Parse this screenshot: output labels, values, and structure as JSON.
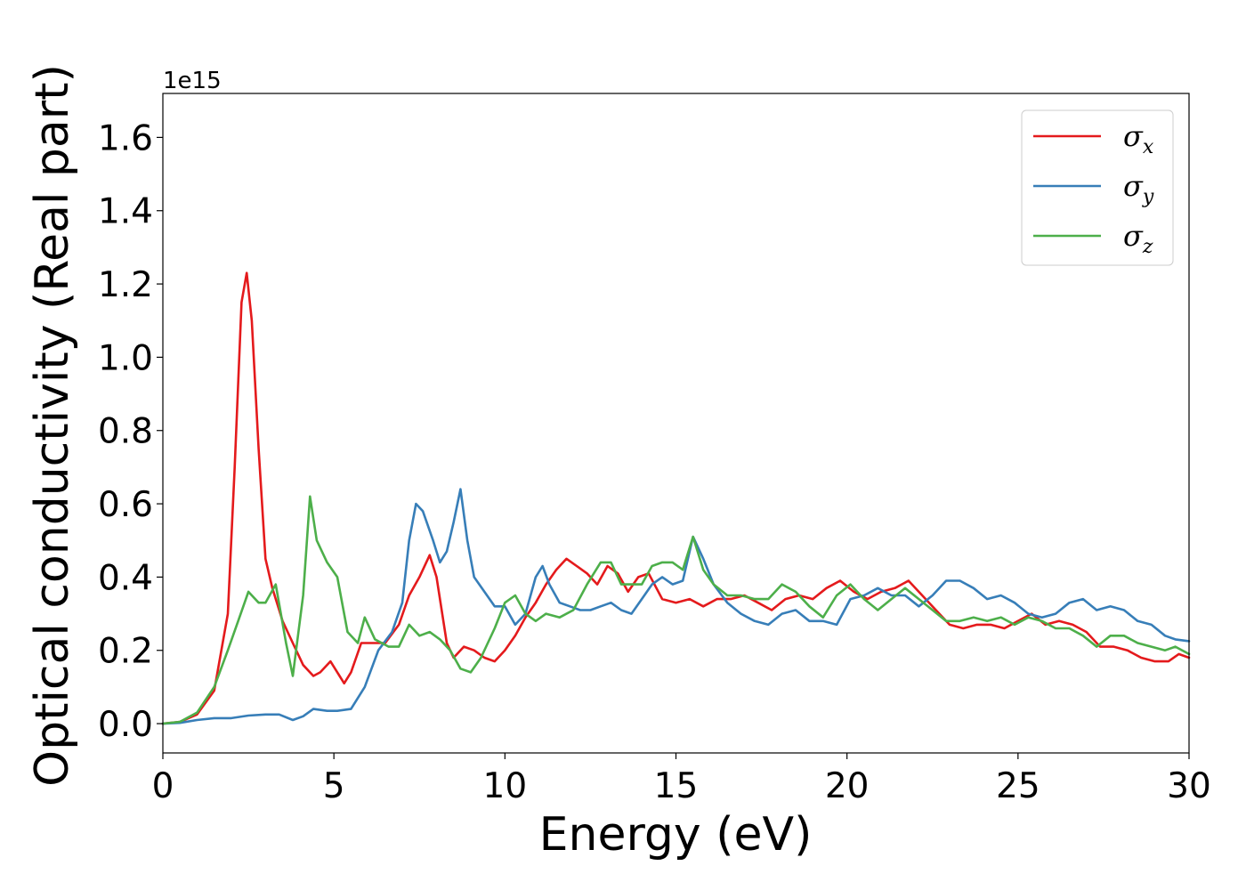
{
  "chart_data": {
    "type": "line",
    "xlabel": "Energy (eV)",
    "ylabel": "Optical conductivity (Real part)",
    "y_offset_label": "1e15",
    "xlim": [
      0,
      30
    ],
    "ylim": [
      -0.08,
      1.72
    ],
    "xticks": [
      0,
      5,
      10,
      15,
      20,
      25,
      30
    ],
    "yticks": [
      0.0,
      0.2,
      0.4,
      0.6,
      0.8,
      1.0,
      1.2,
      1.4,
      1.6
    ],
    "grid": false,
    "legend_placement": "top-right",
    "series": [
      {
        "name": "σx",
        "symbol": "σ",
        "subscript": "x",
        "color": "#e41a1c",
        "x": [
          0,
          0.5,
          1,
          1.5,
          1.9,
          2.1,
          2.3,
          2.45,
          2.6,
          2.8,
          3,
          3.2,
          3.5,
          3.8,
          4.1,
          4.4,
          4.6,
          4.9,
          5.1,
          5.3,
          5.5,
          5.8,
          6.1,
          6.5,
          6.9,
          7.2,
          7.5,
          7.8,
          8,
          8.3,
          8.5,
          8.8,
          9.1,
          9.4,
          9.7,
          10,
          10.3,
          10.6,
          10.9,
          11.2,
          11.5,
          11.8,
          12.1,
          12.4,
          12.7,
          13,
          13.3,
          13.6,
          13.9,
          14.2,
          14.6,
          15,
          15.4,
          15.8,
          16.2,
          16.6,
          17,
          17.4,
          17.8,
          18.2,
          18.6,
          19,
          19.4,
          19.8,
          20.2,
          20.6,
          21,
          21.4,
          21.8,
          22.2,
          22.6,
          23,
          23.4,
          23.8,
          24.2,
          24.6,
          25,
          25.4,
          25.8,
          26.2,
          26.6,
          27,
          27.4,
          27.8,
          28.2,
          28.6,
          29,
          29.4,
          29.7,
          30
        ],
        "values": [
          0,
          0.005,
          0.025,
          0.09,
          0.3,
          0.7,
          1.15,
          1.23,
          1.1,
          0.75,
          0.45,
          0.37,
          0.28,
          0.22,
          0.16,
          0.13,
          0.14,
          0.17,
          0.14,
          0.11,
          0.14,
          0.22,
          0.22,
          0.22,
          0.27,
          0.35,
          0.4,
          0.46,
          0.4,
          0.22,
          0.18,
          0.21,
          0.2,
          0.18,
          0.17,
          0.2,
          0.24,
          0.29,
          0.33,
          0.38,
          0.42,
          0.45,
          0.43,
          0.41,
          0.38,
          0.43,
          0.41,
          0.36,
          0.4,
          0.41,
          0.34,
          0.33,
          0.34,
          0.32,
          0.34,
          0.34,
          0.35,
          0.33,
          0.31,
          0.34,
          0.35,
          0.34,
          0.37,
          0.39,
          0.36,
          0.34,
          0.36,
          0.37,
          0.39,
          0.35,
          0.31,
          0.27,
          0.26,
          0.27,
          0.27,
          0.26,
          0.28,
          0.3,
          0.27,
          0.28,
          0.27,
          0.25,
          0.21,
          0.21,
          0.2,
          0.18,
          0.17,
          0.17,
          0.19,
          0.18
        ]
      },
      {
        "name": "σy",
        "symbol": "σ",
        "subscript": "y",
        "color": "#377eb8",
        "x": [
          0,
          0.5,
          1,
          1.5,
          2,
          2.5,
          3,
          3.4,
          3.8,
          4.1,
          4.4,
          4.8,
          5.1,
          5.5,
          5.9,
          6.3,
          6.7,
          7,
          7.2,
          7.4,
          7.6,
          7.9,
          8.1,
          8.3,
          8.5,
          8.7,
          8.9,
          9.1,
          9.4,
          9.7,
          10,
          10.3,
          10.6,
          10.9,
          11.1,
          11.3,
          11.6,
          11.9,
          12.2,
          12.5,
          12.8,
          13.1,
          13.4,
          13.7,
          14,
          14.3,
          14.6,
          14.9,
          15.2,
          15.5,
          15.8,
          16.1,
          16.5,
          16.9,
          17.3,
          17.7,
          18.1,
          18.5,
          18.9,
          19.3,
          19.7,
          20.1,
          20.5,
          20.9,
          21.3,
          21.7,
          22.1,
          22.5,
          22.9,
          23.3,
          23.7,
          24.1,
          24.5,
          24.9,
          25.3,
          25.7,
          26.1,
          26.5,
          26.9,
          27.3,
          27.7,
          28.1,
          28.5,
          28.9,
          29.3,
          29.6,
          30
        ],
        "values": [
          0,
          0.002,
          0.01,
          0.015,
          0.015,
          0.022,
          0.025,
          0.025,
          0.01,
          0.02,
          0.04,
          0.035,
          0.035,
          0.04,
          0.1,
          0.2,
          0.25,
          0.33,
          0.5,
          0.6,
          0.58,
          0.5,
          0.44,
          0.47,
          0.55,
          0.64,
          0.5,
          0.4,
          0.36,
          0.32,
          0.32,
          0.27,
          0.3,
          0.4,
          0.43,
          0.38,
          0.33,
          0.32,
          0.31,
          0.31,
          0.32,
          0.33,
          0.31,
          0.3,
          0.34,
          0.38,
          0.4,
          0.38,
          0.39,
          0.51,
          0.45,
          0.38,
          0.33,
          0.3,
          0.28,
          0.27,
          0.3,
          0.31,
          0.28,
          0.28,
          0.27,
          0.34,
          0.35,
          0.37,
          0.35,
          0.35,
          0.32,
          0.35,
          0.39,
          0.39,
          0.37,
          0.34,
          0.35,
          0.33,
          0.3,
          0.29,
          0.3,
          0.33,
          0.34,
          0.31,
          0.32,
          0.31,
          0.28,
          0.27,
          0.24,
          0.23,
          0.225
        ]
      },
      {
        "name": "σz",
        "symbol": "σ",
        "subscript": "z",
        "color": "#4daf4a",
        "x": [
          0,
          0.5,
          1,
          1.5,
          1.9,
          2.2,
          2.5,
          2.8,
          3,
          3.3,
          3.6,
          3.8,
          4.1,
          4.3,
          4.5,
          4.8,
          5.1,
          5.4,
          5.7,
          5.9,
          6.2,
          6.6,
          6.9,
          7.2,
          7.5,
          7.8,
          8.1,
          8.4,
          8.7,
          9,
          9.3,
          9.7,
          10,
          10.3,
          10.6,
          10.9,
          11.2,
          11.6,
          12,
          12.4,
          12.8,
          13.1,
          13.4,
          13.7,
          14,
          14.3,
          14.6,
          14.9,
          15.2,
          15.5,
          15.8,
          16.1,
          16.5,
          16.9,
          17.3,
          17.7,
          18.1,
          18.5,
          18.9,
          19.3,
          19.7,
          20.1,
          20.5,
          20.9,
          21.3,
          21.7,
          22.1,
          22.5,
          22.9,
          23.3,
          23.7,
          24.1,
          24.5,
          24.9,
          25.3,
          25.7,
          26.1,
          26.5,
          26.9,
          27.3,
          27.7,
          28.1,
          28.5,
          28.9,
          29.3,
          29.6,
          30
        ],
        "values": [
          0,
          0.005,
          0.03,
          0.1,
          0.2,
          0.28,
          0.36,
          0.33,
          0.33,
          0.38,
          0.22,
          0.13,
          0.35,
          0.62,
          0.5,
          0.44,
          0.4,
          0.25,
          0.22,
          0.29,
          0.23,
          0.21,
          0.21,
          0.27,
          0.24,
          0.25,
          0.23,
          0.2,
          0.15,
          0.14,
          0.18,
          0.26,
          0.33,
          0.35,
          0.3,
          0.28,
          0.3,
          0.29,
          0.31,
          0.38,
          0.44,
          0.44,
          0.38,
          0.38,
          0.38,
          0.43,
          0.44,
          0.44,
          0.42,
          0.51,
          0.42,
          0.38,
          0.35,
          0.35,
          0.34,
          0.34,
          0.38,
          0.36,
          0.32,
          0.29,
          0.35,
          0.38,
          0.34,
          0.31,
          0.34,
          0.37,
          0.34,
          0.31,
          0.28,
          0.28,
          0.29,
          0.28,
          0.29,
          0.27,
          0.29,
          0.28,
          0.26,
          0.26,
          0.24,
          0.21,
          0.24,
          0.24,
          0.22,
          0.21,
          0.2,
          0.21,
          0.19
        ]
      }
    ]
  }
}
